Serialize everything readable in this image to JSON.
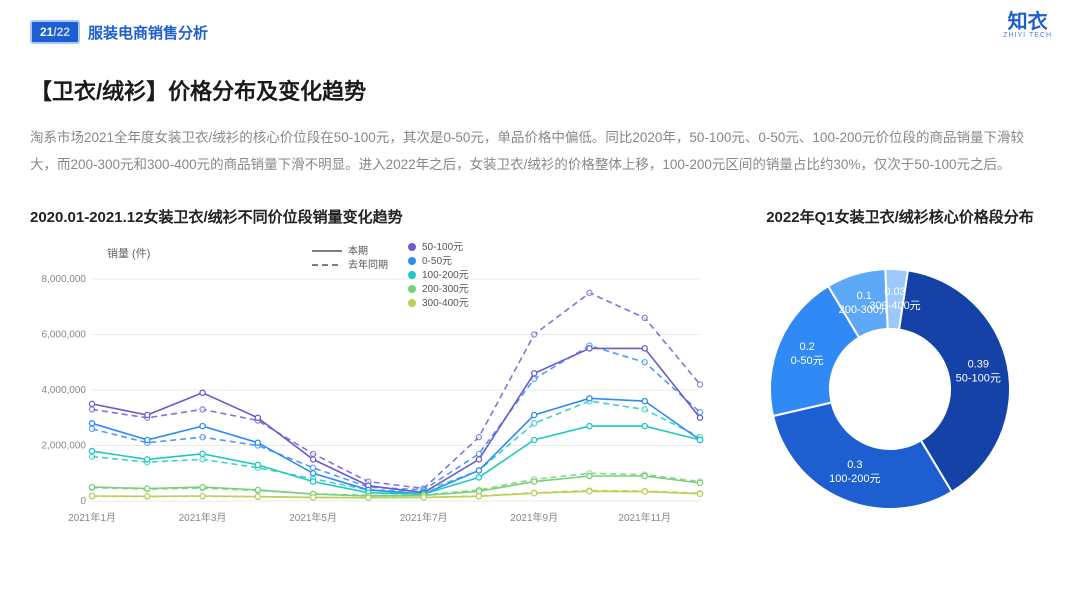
{
  "header": {
    "page_current": "21",
    "page_total": "/22",
    "category": "服装电商销售分析",
    "brand": "知衣",
    "brand_sub": "ZHIYI TECH"
  },
  "title": "【卫衣/绒衫】价格分布及变化趋势",
  "description": "淘系市场2021全年度女装卫衣/绒衫的核心价位段在50-100元，其次是0-50元，单品价格中偏低。同比2020年，50-100元、0-50元、100-200元价位段的商品销量下滑较大，而200-300元和300-400元的商品销量下滑不明显。进入2022年之后，女装卫衣/绒衫的价格整体上移，100-200元区间的销量占比约30%，仅次于50-100元之后。",
  "line_chart": {
    "title": "2020.01-2021.12女装卫衣/绒衫不同价位段销量变化趋势",
    "y_axis_title": "销量 (件)",
    "y_ticks": [
      0,
      2000000,
      4000000,
      6000000,
      8000000
    ],
    "y_tick_labels": [
      "0",
      "2,000,000",
      "4,000,000",
      "6,000,000",
      "8,000,000"
    ],
    "x_labels": [
      "2021年1月",
      "",
      "2021年3月",
      "",
      "2021年5月",
      "",
      "2021年7月",
      "",
      "2021年9月",
      "",
      "2021年11月",
      ""
    ],
    "legend_style": [
      {
        "label": "本期",
        "dash": "0"
      },
      {
        "label": "去年同期",
        "dash": "6,4"
      }
    ],
    "series_legend": [
      {
        "label": "50-100元",
        "color": "#6d5acf"
      },
      {
        "label": "0-50元",
        "color": "#2f8af5"
      },
      {
        "label": "100-200元",
        "color": "#1ec9c3"
      },
      {
        "label": "200-300元",
        "color": "#78d07a"
      },
      {
        "label": "300-400元",
        "color": "#b9d157"
      }
    ],
    "ylim": [
      0,
      8000000
    ],
    "series_solid": [
      {
        "color": "#6d5acf",
        "values": [
          3500000,
          3100000,
          3900000,
          3000000,
          1500000,
          550000,
          300000,
          1500000,
          4600000,
          5500000,
          5500000,
          3000000
        ]
      },
      {
        "color": "#2f8af5",
        "values": [
          2800000,
          2200000,
          2700000,
          2100000,
          1000000,
          400000,
          250000,
          1100000,
          3100000,
          3700000,
          3600000,
          2200000
        ]
      },
      {
        "color": "#1ec9c3",
        "values": [
          1800000,
          1500000,
          1700000,
          1300000,
          700000,
          300000,
          250000,
          850000,
          2200000,
          2700000,
          2700000,
          2200000
        ]
      },
      {
        "color": "#78d07a",
        "values": [
          500000,
          450000,
          500000,
          400000,
          250000,
          180000,
          200000,
          350000,
          700000,
          900000,
          900000,
          650000
        ]
      },
      {
        "color": "#b9d157",
        "values": [
          180000,
          170000,
          180000,
          160000,
          130000,
          120000,
          130000,
          170000,
          280000,
          350000,
          340000,
          260000
        ]
      }
    ],
    "series_dash": [
      {
        "color": "#6d5acf",
        "values": [
          3300000,
          3000000,
          3300000,
          2900000,
          1700000,
          700000,
          450000,
          2300000,
          6000000,
          7500000,
          6600000,
          4200000
        ]
      },
      {
        "color": "#2f8af5",
        "values": [
          2600000,
          2100000,
          2300000,
          2000000,
          1200000,
          500000,
          400000,
          1700000,
          4400000,
          5600000,
          5000000,
          3200000
        ]
      },
      {
        "color": "#1ec9c3",
        "values": [
          1600000,
          1400000,
          1500000,
          1200000,
          800000,
          400000,
          350000,
          1100000,
          2800000,
          3600000,
          3300000,
          2300000
        ]
      },
      {
        "color": "#78d07a",
        "values": [
          480000,
          430000,
          460000,
          380000,
          260000,
          200000,
          220000,
          400000,
          780000,
          1000000,
          950000,
          700000
        ]
      },
      {
        "color": "#b9d157",
        "values": [
          170000,
          160000,
          170000,
          150000,
          130000,
          120000,
          130000,
          180000,
          300000,
          380000,
          360000,
          280000
        ]
      }
    ],
    "grid_color": "#e8e8e8",
    "bg": "#ffffff"
  },
  "donut_chart": {
    "title": "2022年Q1女装卫衣/绒衫核心价格段分布",
    "slices": [
      {
        "label": "50-100元",
        "value": 0.39,
        "value_label": "0.39",
        "color": "#1442a6"
      },
      {
        "label": "100-200元",
        "value": 0.3,
        "value_label": "0.3",
        "color": "#1d5fd1"
      },
      {
        "label": "0-50元",
        "value": 0.2,
        "value_label": "0.2",
        "color": "#2f8af5"
      },
      {
        "label": "200-300元",
        "value": 0.08,
        "value_label": "0.1",
        "color": "#5da8f7"
      },
      {
        "label": "300-400元",
        "value": 0.03,
        "value_label": "0.03",
        "color": "#9cc9fb"
      }
    ],
    "inner_radius": 60,
    "outer_radius": 120,
    "bg": "#ffffff"
  }
}
